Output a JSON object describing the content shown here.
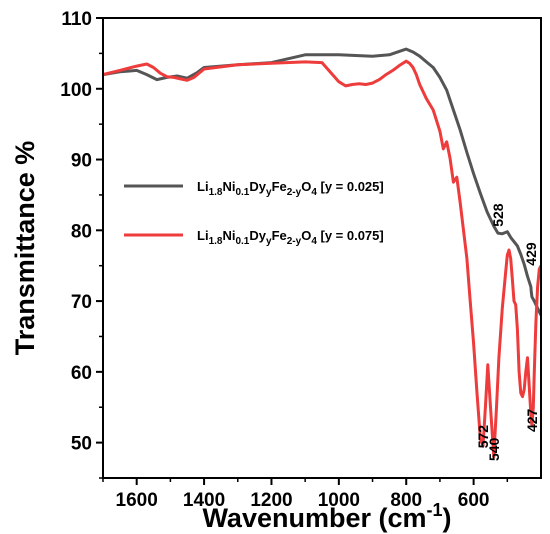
{
  "chart_data": {
    "type": "line",
    "title": "",
    "xlabel": "Wavenumber (cm",
    "xlabel_sup": "-1",
    "xlabel_close": ")",
    "ylabel": "Transmittance %",
    "xlim": [
      1700,
      400
    ],
    "ylim": [
      45,
      110
    ],
    "x_reversed": true,
    "grid": false,
    "legend_position": "center-left",
    "x_ticks": [
      1600,
      1400,
      1200,
      1000,
      800,
      600
    ],
    "y_ticks": [
      50,
      60,
      70,
      80,
      90,
      100,
      110
    ],
    "series": [
      {
        "name": "Li1.8Ni0.1DyyFe2-yO4 [y = 0.025]",
        "legend": [
          {
            "t": "Li"
          },
          {
            "t": "1.8",
            "sub": true
          },
          {
            "t": "Ni"
          },
          {
            "t": "0.1",
            "sub": true
          },
          {
            "t": "Dy"
          },
          {
            "t": "y",
            "sub": true
          },
          {
            "t": "Fe"
          },
          {
            "t": "2-y",
            "sub": true
          },
          {
            "t": "O"
          },
          {
            "t": "4",
            "sub": true
          },
          {
            "t": " [y = 0.025]"
          }
        ],
        "color": "#555555",
        "x": [
          1700,
          1650,
          1600,
          1570,
          1540,
          1510,
          1480,
          1450,
          1420,
          1400,
          1300,
          1200,
          1100,
          1000,
          900,
          850,
          800,
          780,
          760,
          740,
          720,
          700,
          680,
          660,
          640,
          620,
          600,
          580,
          560,
          540,
          528,
          515,
          500,
          490,
          470,
          460,
          450,
          440,
          430,
          429,
          427,
          420,
          410,
          400
        ],
        "y": [
          102.0,
          102.4,
          102.6,
          102.0,
          101.3,
          101.6,
          101.8,
          101.5,
          102.3,
          103.0,
          103.4,
          103.7,
          104.8,
          104.8,
          104.6,
          104.8,
          105.6,
          105.2,
          104.6,
          103.8,
          103.0,
          101.6,
          99.8,
          97.0,
          94.2,
          91.0,
          88.0,
          85.2,
          82.6,
          80.6,
          79.6,
          79.5,
          79.8,
          79.0,
          77.8,
          76.6,
          75.2,
          73.5,
          72.0,
          71.4,
          70.6,
          70.0,
          69.0,
          68.0
        ]
      },
      {
        "name": "Li1.8Ni0.1DyyFe2-yO4 [y = 0.075]",
        "legend": [
          {
            "t": "Li"
          },
          {
            "t": "1.8",
            "sub": true
          },
          {
            "t": "Ni"
          },
          {
            "t": "0.1",
            "sub": true
          },
          {
            "t": "Dy"
          },
          {
            "t": "y",
            "sub": true
          },
          {
            "t": "Fe"
          },
          {
            "t": "2-y",
            "sub": true
          },
          {
            "t": "O"
          },
          {
            "t": "4",
            "sub": true
          },
          {
            "t": " [y = 0.075]"
          }
        ],
        "color": "#ee3b3b",
        "x": [
          1700,
          1650,
          1600,
          1570,
          1550,
          1530,
          1510,
          1490,
          1470,
          1450,
          1430,
          1400,
          1300,
          1200,
          1100,
          1050,
          1000,
          980,
          960,
          940,
          920,
          900,
          880,
          860,
          840,
          820,
          800,
          790,
          780,
          770,
          760,
          740,
          720,
          700,
          690,
          680,
          670,
          660,
          650,
          640,
          630,
          620,
          610,
          600,
          590,
          580,
          572,
          565,
          558,
          550,
          540,
          532,
          525,
          515,
          505,
          500,
          495,
          490,
          485,
          480,
          475,
          470,
          465,
          460,
          455,
          450,
          445,
          440,
          435,
          430,
          427,
          423,
          420,
          415,
          410,
          405,
          400
        ],
        "y": [
          102.0,
          102.6,
          103.2,
          103.5,
          103.0,
          102.2,
          101.7,
          101.6,
          101.4,
          101.2,
          101.6,
          102.8,
          103.4,
          103.6,
          103.8,
          103.7,
          101.0,
          100.4,
          100.6,
          100.7,
          100.6,
          100.8,
          101.3,
          102.0,
          102.6,
          103.3,
          103.9,
          103.6,
          103.0,
          102.0,
          100.6,
          98.6,
          97.0,
          94.0,
          91.5,
          92.5,
          90.2,
          86.8,
          87.5,
          84.0,
          80.0,
          76.0,
          70.0,
          64.0,
          57.0,
          50.5,
          49.5,
          55.0,
          61.0,
          55.0,
          48.0,
          55.0,
          62.0,
          69.0,
          74.0,
          76.5,
          77.2,
          76.0,
          73.0,
          70.0,
          69.5,
          66.0,
          60.0,
          57.0,
          56.5,
          57.5,
          60.0,
          62.0,
          58.0,
          54.0,
          52.5,
          55.0,
          60.0,
          67.0,
          72.0,
          74.5,
          75.0
        ]
      }
    ],
    "annotations": [
      {
        "text": "528",
        "x": 528,
        "y": 80.5,
        "rotate": -90
      },
      {
        "text": "429",
        "x": 429,
        "y": 75.0,
        "rotate": -90
      },
      {
        "text": "572",
        "x": 572,
        "y": 49.2,
        "rotate": -90
      },
      {
        "text": "540",
        "x": 540,
        "y": 47.4,
        "rotate": -90
      },
      {
        "text": "427",
        "x": 427,
        "y": 51.5,
        "rotate": -90
      }
    ]
  }
}
